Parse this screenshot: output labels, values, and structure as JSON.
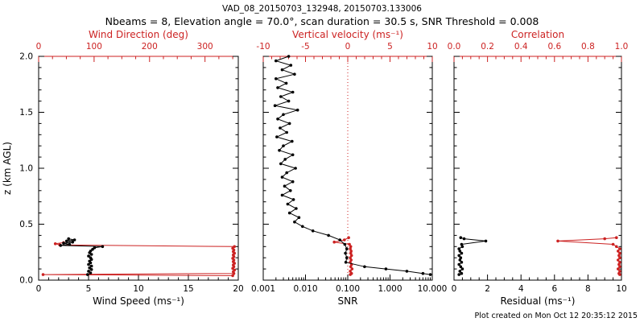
{
  "title": "VAD_08_20150703_132948, 20150703.133006",
  "subtitle": "Nbeams = 8, Elevation angle = 70.0°, scan duration = 30.5 s, SNR Threshold = 0.008",
  "footer": "Plot created on Mon Oct 12 20:35:12 2015",
  "colors": {
    "accent_red": "#cc2222",
    "axis_black": "#000000",
    "background": "#ffffff"
  },
  "chart_data": [
    {
      "type": "line",
      "id": "wind",
      "y_axis": {
        "label": "z (km AGL)",
        "lim": [
          0,
          2
        ],
        "ticks": [
          0,
          0.5,
          1,
          1.5,
          2
        ],
        "tick_labels": [
          "0.0",
          "0.5",
          "1.0",
          "1.5",
          "2.0"
        ],
        "show_labels": true,
        "minor_per_major": 5
      },
      "bottom_axis": {
        "label": "Wind Speed (ms⁻¹)",
        "scale": "linear",
        "lim": [
          0,
          20
        ],
        "ticks": [
          0,
          5,
          10,
          15,
          20
        ],
        "tick_labels": [
          "0",
          "5",
          "10",
          "15",
          "20"
        ],
        "minor_per_major": 5,
        "color": "#000000"
      },
      "top_axis": {
        "label": "Wind Direction (deg)",
        "scale": "linear",
        "lim": [
          0,
          360
        ],
        "ticks": [
          0,
          100,
          200,
          300
        ],
        "tick_labels": [
          "0",
          "100",
          "200",
          "300"
        ],
        "minor_per_major": 4,
        "color": "#cc2222"
      },
      "series": [
        {
          "name": "wind-direction",
          "axis": "top",
          "color": "#cc2222",
          "points": [
            [
              350,
              0.04
            ],
            [
              8,
              0.05
            ],
            [
              352,
              0.06
            ],
            [
              351,
              0.075
            ],
            [
              353,
              0.09
            ],
            [
              350,
              0.105
            ],
            [
              352,
              0.12
            ],
            [
              351,
              0.135
            ],
            [
              353,
              0.15
            ],
            [
              351,
              0.165
            ],
            [
              352,
              0.18
            ],
            [
              350,
              0.195
            ],
            [
              352,
              0.21
            ],
            [
              351,
              0.225
            ],
            [
              353,
              0.24
            ],
            [
              351,
              0.255
            ],
            [
              352,
              0.27
            ],
            [
              350,
              0.285
            ],
            [
              353,
              0.3
            ],
            [
              38,
              0.315
            ],
            [
              30,
              0.325
            ],
            [
              45,
              0.335
            ]
          ]
        },
        {
          "name": "wind-speed",
          "axis": "bottom",
          "color": "#000000",
          "points": [
            [
              4.9,
              0.05
            ],
            [
              5.2,
              0.065
            ],
            [
              5.0,
              0.08
            ],
            [
              5.3,
              0.095
            ],
            [
              5.1,
              0.11
            ],
            [
              5.3,
              0.125
            ],
            [
              5.0,
              0.14
            ],
            [
              5.2,
              0.155
            ],
            [
              5.1,
              0.17
            ],
            [
              5.3,
              0.185
            ],
            [
              5.2,
              0.2
            ],
            [
              5.0,
              0.215
            ],
            [
              5.3,
              0.23
            ],
            [
              5.1,
              0.245
            ],
            [
              5.2,
              0.26
            ],
            [
              5.4,
              0.275
            ],
            [
              5.6,
              0.29
            ],
            [
              6.4,
              0.3
            ],
            [
              2.2,
              0.31
            ],
            [
              3.1,
              0.32
            ],
            [
              2.5,
              0.33
            ],
            [
              3.4,
              0.34
            ],
            [
              2.8,
              0.35
            ],
            [
              3.6,
              0.36
            ],
            [
              3.0,
              0.37
            ]
          ]
        }
      ]
    },
    {
      "type": "line",
      "id": "snr",
      "y_axis": {
        "label": "",
        "lim": [
          0,
          2
        ],
        "ticks": [
          0,
          0.5,
          1,
          1.5,
          2
        ],
        "tick_labels": [
          "0.0",
          "0.5",
          "1.0",
          "1.5",
          "2.0"
        ],
        "show_labels": false,
        "minor_per_major": 5
      },
      "bottom_axis": {
        "label": "SNR",
        "scale": "log",
        "lim": [
          0.001,
          10
        ],
        "ticks": [
          0.001,
          0.01,
          0.1,
          1,
          10
        ],
        "tick_labels": [
          "0.001",
          "0.010",
          "0.100",
          "1.000",
          "10.000"
        ],
        "color": "#000000"
      },
      "top_axis": {
        "label": "Vertical velocity (ms⁻¹)",
        "scale": "linear",
        "lim": [
          -10,
          10
        ],
        "ticks": [
          -10,
          -5,
          0,
          5,
          10
        ],
        "tick_labels": [
          "-10",
          "-5",
          "0",
          "5",
          "10"
        ],
        "minor_per_major": 5,
        "color": "#cc2222",
        "ref_line": 0
      },
      "series": [
        {
          "name": "vertical-velocity",
          "axis": "top",
          "color": "#cc2222",
          "points": [
            [
              0.3,
              0.05
            ],
            [
              0.45,
              0.06
            ],
            [
              0.3,
              0.08
            ],
            [
              0.5,
              0.1
            ],
            [
              0.35,
              0.12
            ],
            [
              0.45,
              0.14
            ],
            [
              0.3,
              0.16
            ],
            [
              0.4,
              0.18
            ],
            [
              0.3,
              0.2
            ],
            [
              0.45,
              0.22
            ],
            [
              0.35,
              0.24
            ],
            [
              0.4,
              0.26
            ],
            [
              0.3,
              0.28
            ],
            [
              0.35,
              0.3
            ],
            [
              0.2,
              0.32
            ],
            [
              -1.6,
              0.34
            ],
            [
              -0.4,
              0.36
            ],
            [
              0.1,
              0.38
            ]
          ]
        },
        {
          "name": "snr",
          "axis": "bottom",
          "color": "#000000",
          "points": [
            [
              0.004,
              2.0
            ],
            [
              0.002,
              1.96
            ],
            [
              0.0045,
              1.92
            ],
            [
              0.0028,
              1.88
            ],
            [
              0.0055,
              1.84
            ],
            [
              0.002,
              1.8
            ],
            [
              0.0035,
              1.76
            ],
            [
              0.0022,
              1.72
            ],
            [
              0.005,
              1.68
            ],
            [
              0.0026,
              1.64
            ],
            [
              0.004,
              1.6
            ],
            [
              0.0019,
              1.56
            ],
            [
              0.0065,
              1.52
            ],
            [
              0.003,
              1.48
            ],
            [
              0.0022,
              1.44
            ],
            [
              0.0042,
              1.4
            ],
            [
              0.0025,
              1.36
            ],
            [
              0.0036,
              1.32
            ],
            [
              0.0021,
              1.28
            ],
            [
              0.0048,
              1.24
            ],
            [
              0.003,
              1.2
            ],
            [
              0.0024,
              1.16
            ],
            [
              0.005,
              1.12
            ],
            [
              0.0033,
              1.08
            ],
            [
              0.0026,
              1.04
            ],
            [
              0.0058,
              1.0
            ],
            [
              0.0036,
              0.96
            ],
            [
              0.0028,
              0.92
            ],
            [
              0.005,
              0.88
            ],
            [
              0.0032,
              0.84
            ],
            [
              0.0044,
              0.8
            ],
            [
              0.0028,
              0.76
            ],
            [
              0.0052,
              0.72
            ],
            [
              0.0038,
              0.68
            ],
            [
              0.006,
              0.64
            ],
            [
              0.0042,
              0.6
            ],
            [
              0.007,
              0.56
            ],
            [
              0.0055,
              0.52
            ],
            [
              0.0085,
              0.48
            ],
            [
              0.015,
              0.44
            ],
            [
              0.035,
              0.4
            ],
            [
              0.065,
              0.36
            ],
            [
              0.085,
              0.32
            ],
            [
              0.095,
              0.28
            ],
            [
              0.088,
              0.24
            ],
            [
              0.095,
              0.2
            ],
            [
              0.09,
              0.16
            ],
            [
              0.25,
              0.12
            ],
            [
              0.8,
              0.1
            ],
            [
              2.5,
              0.08
            ],
            [
              6.0,
              0.06
            ],
            [
              9.0,
              0.05
            ]
          ]
        }
      ]
    },
    {
      "type": "line",
      "id": "residual",
      "y_axis": {
        "label": "",
        "lim": [
          0,
          2
        ],
        "ticks": [
          0,
          0.5,
          1,
          1.5,
          2
        ],
        "tick_labels": [
          "0.0",
          "0.5",
          "1.0",
          "1.5",
          "2.0"
        ],
        "show_labels": false,
        "minor_per_major": 5
      },
      "bottom_axis": {
        "label": "Residual (ms⁻¹)",
        "scale": "linear",
        "lim": [
          0,
          10
        ],
        "ticks": [
          0,
          2,
          4,
          6,
          8,
          10
        ],
        "tick_labels": [
          "0",
          "2",
          "4",
          "6",
          "8",
          "10"
        ],
        "minor_per_major": 4,
        "color": "#000000"
      },
      "top_axis": {
        "label": "Correlation",
        "scale": "linear",
        "lim": [
          0,
          1
        ],
        "ticks": [
          0,
          0.2,
          0.4,
          0.6,
          0.8,
          1
        ],
        "tick_labels": [
          "0.0",
          "0.2",
          "0.4",
          "0.6",
          "0.8",
          "1.0"
        ],
        "minor_per_major": 4,
        "color": "#cc2222"
      },
      "series": [
        {
          "name": "correlation",
          "axis": "top",
          "color": "#cc2222",
          "points": [
            [
              0.99,
              0.05
            ],
            [
              0.985,
              0.06
            ],
            [
              0.99,
              0.08
            ],
            [
              0.98,
              0.1
            ],
            [
              0.99,
              0.12
            ],
            [
              0.985,
              0.14
            ],
            [
              0.99,
              0.16
            ],
            [
              0.98,
              0.18
            ],
            [
              0.99,
              0.2
            ],
            [
              0.985,
              0.22
            ],
            [
              0.99,
              0.24
            ],
            [
              0.98,
              0.26
            ],
            [
              0.99,
              0.28
            ],
            [
              0.97,
              0.3
            ],
            [
              0.95,
              0.32
            ],
            [
              0.62,
              0.35
            ],
            [
              0.9,
              0.37
            ],
            [
              0.97,
              0.38
            ]
          ]
        },
        {
          "name": "residual",
          "axis": "bottom",
          "color": "#000000",
          "points": [
            [
              0.3,
              0.05
            ],
            [
              0.45,
              0.06
            ],
            [
              0.35,
              0.08
            ],
            [
              0.5,
              0.1
            ],
            [
              0.4,
              0.12
            ],
            [
              0.3,
              0.14
            ],
            [
              0.45,
              0.16
            ],
            [
              0.35,
              0.18
            ],
            [
              0.4,
              0.2
            ],
            [
              0.3,
              0.22
            ],
            [
              0.45,
              0.24
            ],
            [
              0.35,
              0.26
            ],
            [
              0.3,
              0.28
            ],
            [
              0.5,
              0.3
            ],
            [
              0.45,
              0.32
            ],
            [
              1.9,
              0.35
            ],
            [
              0.6,
              0.37
            ],
            [
              0.4,
              0.38
            ]
          ]
        }
      ]
    }
  ]
}
